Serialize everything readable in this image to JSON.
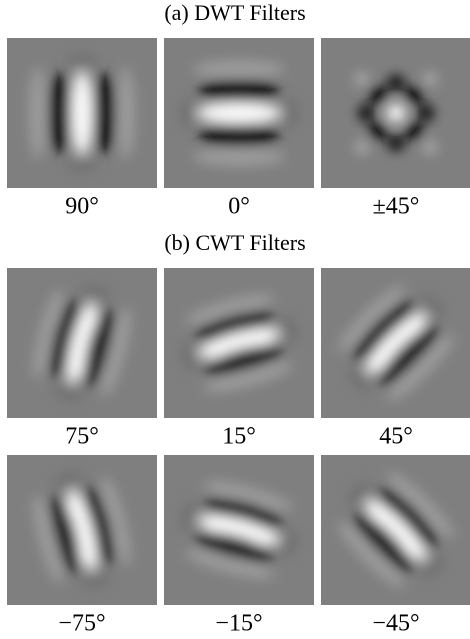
{
  "sections": [
    {
      "title": "(a) DWT Filters",
      "rows": [
        [
          "90°",
          "0°",
          "±45°"
        ]
      ]
    },
    {
      "title": "(b) CWT Filters",
      "rows": [
        [
          "75°",
          "15°",
          "45°"
        ],
        [
          "−75°",
          "−15°",
          "−45°"
        ]
      ]
    }
  ]
}
